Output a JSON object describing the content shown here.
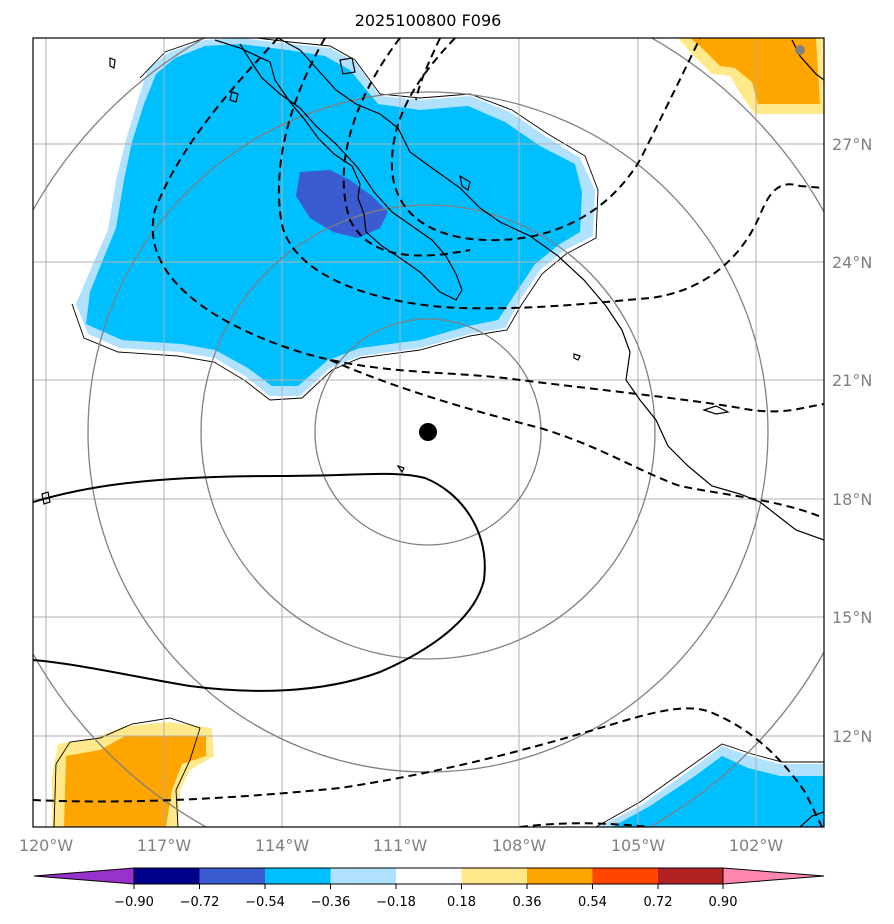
{
  "map": {
    "title": "2025100800 F096",
    "lon_labels": [
      "120°W",
      "117°W",
      "114°W",
      "111°W",
      "108°W",
      "105°W",
      "102°W"
    ],
    "lat_labels": [
      "27°N",
      "24°N",
      "21°N",
      "18°N",
      "15°N",
      "12°N"
    ],
    "storm_center": {
      "lon": -110.7,
      "lat": 19.75
    },
    "extent": {
      "lon_min": -120.3,
      "lon_max": -100.2,
      "lat_min": 10.2,
      "lat_max": 30.3
    }
  },
  "colorbar": {
    "tick_labels": [
      "−0.90",
      "−0.72",
      "−0.54",
      "−0.36",
      "−0.18",
      "0.18",
      "0.36",
      "0.54",
      "0.72",
      "0.90"
    ],
    "colors": [
      "#9932cc",
      "#00008b",
      "#3b5bd1",
      "#00bfff",
      "#b0e2ff",
      "#ffffff",
      "#ffe98a",
      "#ffa500",
      "#ff4500",
      "#b22222",
      "#ff88b0"
    ]
  },
  "colors": {
    "fill_light_blue": "#b0e2ff",
    "fill_blue": "#00bfff",
    "fill_dark_blue": "#3b5bd1",
    "fill_light_yellow": "#ffe98a",
    "fill_orange": "#ffa500",
    "grid": "#aaaaaa",
    "range_rings": "#808080"
  }
}
